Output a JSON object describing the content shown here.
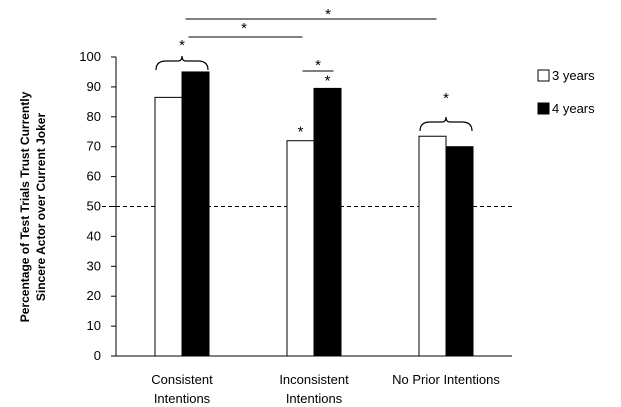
{
  "chart_data": {
    "type": "bar",
    "title": "",
    "xlabel": "",
    "ylabel_lines": [
      "Percentage of Test Trials Trust Currently",
      "Sincere Actor over Current Joker"
    ],
    "ylim": [
      0,
      100
    ],
    "yticks": [
      "0",
      "10",
      "20",
      "30",
      "40",
      "50",
      "60",
      "70",
      "80",
      "90",
      "100"
    ],
    "categories": [
      [
        "Consistent",
        "Intentions"
      ],
      [
        "Inconsistent",
        "Intentions"
      ],
      [
        "No Prior Intentions"
      ]
    ],
    "series": [
      {
        "name": "3 years",
        "values": [
          86.5,
          72,
          73.5
        ],
        "color": "#ffffff"
      },
      {
        "name": "4 years",
        "values": [
          95,
          89.5,
          70
        ],
        "color": "#000000"
      }
    ],
    "reference_line": {
      "value": 50,
      "style": "dashed"
    },
    "legend_position": "right",
    "grid": false,
    "significance_marker": "*"
  }
}
